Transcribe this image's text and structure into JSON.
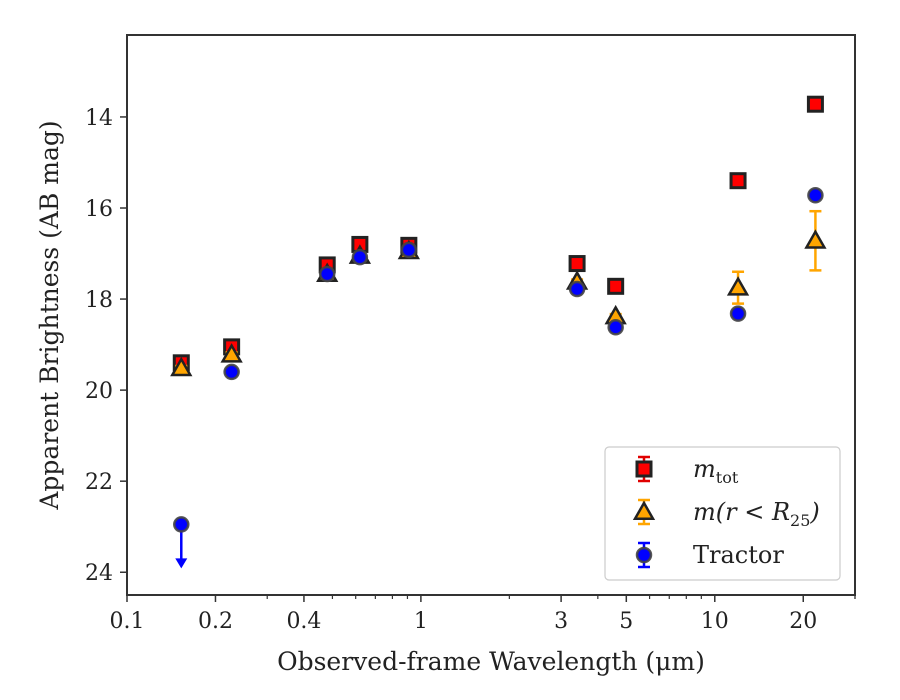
{
  "chart_data": {
    "type": "scatter",
    "xlabel": "Observed-frame Wavelength (μm)",
    "ylabel": "Apparent Brightness (AB mag)",
    "xscale": "log",
    "xlim": [
      0.1,
      30
    ],
    "ylim": [
      24.5,
      12.2
    ],
    "y_inverted": true,
    "grid": false,
    "legend_location": "lower-right",
    "x_ticks": [
      {
        "value": 0.1,
        "label": "0.1"
      },
      {
        "value": 0.2,
        "label": "0.2"
      },
      {
        "value": 0.4,
        "label": "0.4"
      },
      {
        "value": 1,
        "label": "1"
      },
      {
        "value": 3,
        "label": "3"
      },
      {
        "value": 5,
        "label": "5"
      },
      {
        "value": 10,
        "label": "10"
      },
      {
        "value": 20,
        "label": "20"
      }
    ],
    "y_ticks": [
      {
        "value": 14,
        "label": "14"
      },
      {
        "value": 16,
        "label": "16"
      },
      {
        "value": 18,
        "label": "18"
      },
      {
        "value": 20,
        "label": "20"
      },
      {
        "value": 22,
        "label": "22"
      },
      {
        "value": 24,
        "label": "24"
      }
    ],
    "series": [
      {
        "name": "m_tot",
        "legend_main": "m",
        "legend_sub": "tot",
        "legend_suffix": "",
        "marker": "square",
        "fill": "#ff0000",
        "edge": "#222222",
        "errcolor": "#e00000",
        "points": [
          {
            "x": 0.153,
            "y": 19.4,
            "err": 0.05
          },
          {
            "x": 0.227,
            "y": 19.05,
            "err": 0.05
          },
          {
            "x": 0.48,
            "y": 17.25,
            "err": 0.05
          },
          {
            "x": 0.62,
            "y": 16.8,
            "err": 0.05
          },
          {
            "x": 0.91,
            "y": 16.82,
            "err": 0.05
          },
          {
            "x": 3.4,
            "y": 17.22,
            "err": 0.05
          },
          {
            "x": 4.6,
            "y": 17.72,
            "err": 0.05
          },
          {
            "x": 12.0,
            "y": 15.4,
            "err": 0.05
          },
          {
            "x": 22.0,
            "y": 13.72,
            "err": 0.05
          }
        ]
      },
      {
        "name": "m(r < R_25)",
        "legend_main": "m(r < R",
        "legend_sub": "25",
        "legend_suffix": ")",
        "marker": "triangle",
        "fill": "#ffa500",
        "edge": "#222222",
        "errcolor": "#ffa500",
        "points": [
          {
            "x": 0.153,
            "y": 19.52,
            "err": 0.05
          },
          {
            "x": 0.227,
            "y": 19.22,
            "err": 0.05
          },
          {
            "x": 0.48,
            "y": 17.45,
            "err": 0.05
          },
          {
            "x": 0.62,
            "y": 17.05,
            "err": 0.05
          },
          {
            "x": 0.91,
            "y": 16.95,
            "err": 0.05
          },
          {
            "x": 3.4,
            "y": 17.62,
            "err": 0.05
          },
          {
            "x": 4.6,
            "y": 18.38,
            "err": 0.05
          },
          {
            "x": 12.0,
            "y": 17.75,
            "err": 0.35
          },
          {
            "x": 22.0,
            "y": 16.72,
            "err": 0.65
          }
        ]
      },
      {
        "name": "Tractor",
        "legend_main": "Tractor",
        "legend_sub": "",
        "legend_suffix": "",
        "marker": "circle",
        "fill": "#0000ff",
        "edge": "#444444",
        "errcolor": "#0000ff",
        "points": [
          {
            "x": 0.153,
            "y": 22.95,
            "err": 0,
            "upper_limit": true
          },
          {
            "x": 0.227,
            "y": 19.6,
            "err": 0.05
          },
          {
            "x": 0.48,
            "y": 17.45,
            "err": 0.05
          },
          {
            "x": 0.62,
            "y": 17.08,
            "err": 0.05
          },
          {
            "x": 0.91,
            "y": 16.92,
            "err": 0.05
          },
          {
            "x": 3.4,
            "y": 17.78,
            "err": 0.05
          },
          {
            "x": 4.6,
            "y": 18.62,
            "err": 0.05
          },
          {
            "x": 12.0,
            "y": 18.32,
            "err": 0.05
          },
          {
            "x": 22.0,
            "y": 15.72,
            "err": 0.05
          }
        ]
      }
    ]
  }
}
